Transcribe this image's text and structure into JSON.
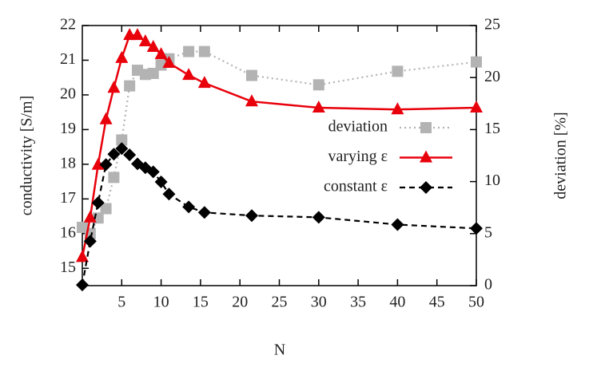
{
  "chart_data": {
    "type": "line",
    "x_label": "N",
    "y_label": "conductivity [S/m]",
    "y2_label": "deviation [%]",
    "x": [
      0,
      1,
      2,
      3,
      4,
      5,
      6,
      7,
      8,
      9,
      10,
      11,
      13.5,
      15.5,
      21.5,
      30,
      40,
      50
    ],
    "xlim": [
      0,
      50
    ],
    "xticks": [
      5,
      10,
      15,
      20,
      25,
      30,
      35,
      40,
      45,
      50
    ],
    "ylim": [
      14.5,
      22
    ],
    "yticks": [
      15,
      16,
      17,
      18,
      19,
      20,
      21,
      22
    ],
    "y2lim": [
      0,
      25
    ],
    "y2ticks": [
      0,
      5,
      10,
      15,
      20,
      25
    ],
    "series": [
      {
        "name": "deviation",
        "color": "#b3b3b3",
        "axis": "y2",
        "marker": "square",
        "dash": "dotted",
        "values": [
          5.6,
          5.0,
          6.5,
          7.4,
          10.4,
          14.0,
          19.2,
          20.7,
          20.3,
          20.4,
          21.2,
          21.8,
          22.5,
          22.5,
          20.2,
          19.3,
          20.6,
          21.5
        ]
      },
      {
        "name": "varying ε",
        "color": "#e8000b",
        "axis": "y",
        "marker": "triangle",
        "dash": "solid",
        "values": [
          15.32,
          16.46,
          17.98,
          19.29,
          20.2,
          21.06,
          21.72,
          21.72,
          21.54,
          21.38,
          21.17,
          20.92,
          20.57,
          20.34,
          19.81,
          19.63,
          19.58,
          19.63
        ]
      },
      {
        "name": "constant ε",
        "color": "#000000",
        "axis": "y",
        "marker": "diamond",
        "dash": "dashed",
        "values": [
          14.52,
          15.78,
          16.89,
          17.99,
          18.29,
          18.45,
          18.27,
          18.01,
          17.9,
          17.78,
          17.49,
          17.14,
          16.77,
          16.61,
          16.52,
          16.47,
          16.26,
          16.15
        ]
      }
    ]
  }
}
